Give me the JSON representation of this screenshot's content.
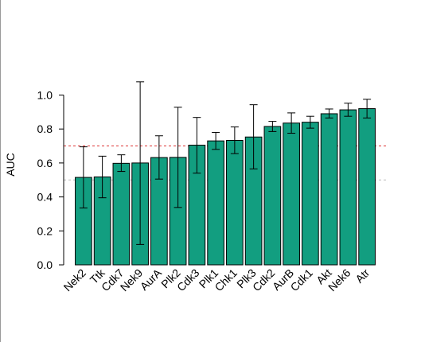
{
  "chart_data": {
    "type": "bar",
    "title": "",
    "xlabel": "",
    "ylabel": "AUC",
    "ylim": [
      0,
      1.1
    ],
    "yticks": [
      "0.0",
      "0.2",
      "0.4",
      "0.6",
      "0.8",
      "1.0"
    ],
    "categories": [
      "Nek2",
      "Ttk",
      "Cdk7",
      "Nek9",
      "AurA",
      "Plk2",
      "Cdk3",
      "Plk1",
      "Chk1",
      "Plk3",
      "Cdk2",
      "AurB",
      "Cdk1",
      "Akt",
      "Nek6",
      "Atr"
    ],
    "series": [
      {
        "values": [
          0.515,
          0.518,
          0.598,
          0.6,
          0.632,
          0.633,
          0.705,
          0.73,
          0.733,
          0.753,
          0.815,
          0.835,
          0.84,
          0.89,
          0.913,
          0.92
        ],
        "err_low": [
          0.335,
          0.395,
          0.55,
          0.12,
          0.505,
          0.338,
          0.54,
          0.68,
          0.655,
          0.565,
          0.785,
          0.775,
          0.805,
          0.865,
          0.875,
          0.865
        ],
        "err_high": [
          0.695,
          0.64,
          0.648,
          1.078,
          0.76,
          0.928,
          0.868,
          0.78,
          0.812,
          0.943,
          0.845,
          0.895,
          0.875,
          0.918,
          0.952,
          0.975
        ]
      }
    ],
    "reference_lines": [
      {
        "value": 0.7,
        "color": "#dd3333",
        "style": "dashed"
      },
      {
        "value": 0.5,
        "color": "#bbbbbb",
        "style": "dashed"
      }
    ],
    "bar_color": "#129e80",
    "grid": false,
    "legend": "none"
  }
}
